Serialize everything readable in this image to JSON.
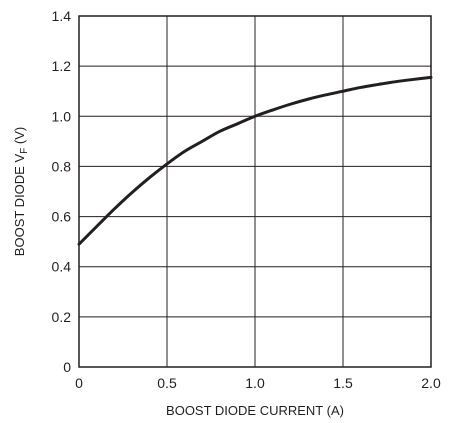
{
  "chart_data": {
    "type": "line",
    "title": "",
    "xlabel": "BOOST DIODE CURRENT (A)",
    "ylabel": {
      "prefix": "BOOST DIODE V",
      "subscript": "F",
      "suffix": " (V)"
    },
    "xlim": [
      0,
      2.0
    ],
    "ylim": [
      0,
      1.4
    ],
    "x_ticks": [
      "0",
      "0.5",
      "1.0",
      "1.5",
      "2.0"
    ],
    "y_ticks": [
      "0",
      "0.2",
      "0.4",
      "0.6",
      "0.8",
      "1.0",
      "1.2",
      "1.4"
    ],
    "grid": true,
    "series": [
      {
        "x": [
          0,
          0.1,
          0.2,
          0.3,
          0.4,
          0.5,
          0.6,
          0.7,
          0.8,
          0.9,
          1.0,
          1.1,
          1.2,
          1.3,
          1.4,
          1.5,
          1.6,
          1.7,
          1.8,
          1.9,
          2.0
        ],
        "y": [
          0.49,
          0.56,
          0.63,
          0.695,
          0.755,
          0.81,
          0.86,
          0.9,
          0.94,
          0.97,
          1.0,
          1.025,
          1.048,
          1.068,
          1.085,
          1.1,
          1.115,
          1.127,
          1.138,
          1.147,
          1.155
        ]
      }
    ],
    "colors": {
      "line": "#231f20",
      "grid": "#231f20",
      "frame": "#231f20",
      "text": "#231f20"
    }
  }
}
